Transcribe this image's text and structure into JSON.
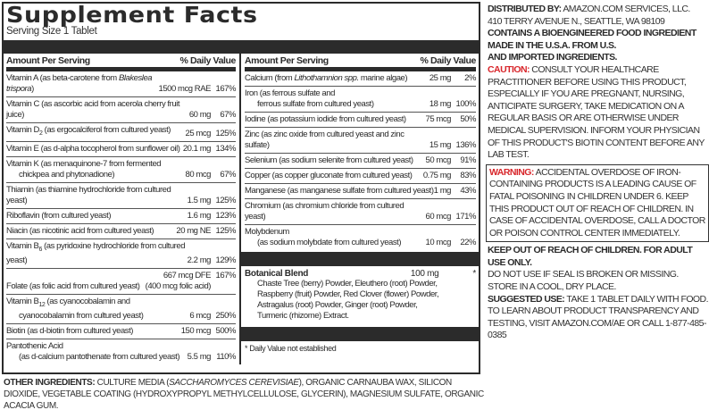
{
  "panel": {
    "title": "Supplement Facts",
    "serving_size": "Serving Size 1 Tablet",
    "header_amount": "Amount Per Serving",
    "header_dv": "% Daily Value"
  },
  "left_rows": [
    {
      "name": "Vitamin A (as beta-carotene from ",
      "italic": "Blakeslea trispora",
      "name_after": ")",
      "amount": "1500 mcg RAE",
      "dv": "167%"
    },
    {
      "name": "Vitamin C (as ascorbic acid from acerola cherry fruit juice)",
      "amount": "60 mg",
      "dv": "67%"
    },
    {
      "name": "Vitamin D",
      "sub": "2",
      "name_after": " (as ergocalciferol from cultured yeast)",
      "amount": "25 mcg",
      "dv": "125%"
    },
    {
      "name": "Vitamin E (as d-alpha tocopherol from sunflower oil)",
      "amount": "20.1 mg",
      "dv": "134%"
    },
    {
      "name": "Vitamin K (as menaquinone-7 from fermented",
      "line2": "chickpea and phytonadione)",
      "amount": "80 mcg",
      "dv": "67%"
    },
    {
      "name": "Thiamin (as thiamine hydrochloride from cultured yeast)",
      "amount": "1.5 mg",
      "dv": "125%"
    },
    {
      "name": "Riboflavin (from cultured yeast)",
      "amount": "1.6 mg",
      "dv": "123%"
    },
    {
      "name": "Niacin (as nicotinic acid from cultured yeast)",
      "amount": "20 mg NE",
      "dv": "125%"
    },
    {
      "name": "Vitamin B",
      "sub": "6",
      "name_after": " (as pyridoxine hydrochloride from cultured yeast)",
      "amount": "2.2 mg",
      "dv": "129%"
    },
    {
      "name": "Folate (as folic acid from cultured yeast)",
      "amount": "667 mcg DFE",
      "amount2": "(400 mcg folic acid)",
      "dv": "167%"
    },
    {
      "name": "Vitamin B",
      "sub": "12",
      "name_after": " (as cyanocobalamin and",
      "line2": "cyanocobalamin from cultured yeast)",
      "amount": "6 mcg",
      "dv": "250%"
    },
    {
      "name": "Biotin (as d-biotin from cultured yeast)",
      "amount": "150 mcg",
      "dv": "500%"
    },
    {
      "name": "Pantothenic Acid",
      "line2": "(as d-calcium pantothenate from cultured yeast)",
      "amount": "5.5 mg",
      "dv": "110%"
    }
  ],
  "right_rows": [
    {
      "name": "Calcium (from ",
      "italic": "Lithothamnion spp.",
      "name_after": " marine algae)",
      "amount": "25 mg",
      "dv": "2%"
    },
    {
      "name": "Iron (as ferrous sulfate and",
      "line2": "ferrous sulfate from cultured yeast)",
      "amount": "18 mg",
      "dv": "100%"
    },
    {
      "name": "Iodine (as potassium iodide from cultured yeast)",
      "amount": "75 mcg",
      "dv": "50%"
    },
    {
      "name": "Zinc (as zinc oxide from cultured yeast and zinc sulfate)",
      "amount": "15 mg",
      "dv": "136%"
    },
    {
      "name": "Selenium (as sodium selenite from cultured yeast)",
      "amount": "50 mcg",
      "dv": "91%"
    },
    {
      "name": "Copper (as copper gluconate from cultured yeast)",
      "amount": "0.75 mg",
      "dv": "83%"
    },
    {
      "name": "Manganese (as manganese sulfate from cultured yeast)",
      "amount": "1 mg",
      "dv": "43%"
    },
    {
      "name": "Chromium (as chromium chloride from cultured yeast)",
      "amount": "60 mcg",
      "dv": "171%"
    },
    {
      "name": "Molybdenum",
      "line2": "(as sodium molybdate from cultured yeast)",
      "amount": "10 mcg",
      "dv": "22%"
    }
  ],
  "blend": {
    "name": "Botanical Blend",
    "amount": "100 mg",
    "dv": "*",
    "ingredients": "Chaste Tree (berry) Powder, Eleuthero (root) Powder, Raspberry (fruit) Powder, Red Clover (flower) Powder, Astragalus (root) Powder, Ginger (root) Powder, Turmeric (rhizome) Extract."
  },
  "footnote": "* Daily Value not established",
  "other_ingredients": {
    "label": "OTHER INGREDIENTS:",
    "text_before": " CULTURE MEDIA (",
    "italic": "SACCHAROMYCES CEREVISIAE",
    "text_after": "), ORGANIC CARNAUBA WAX, SILICON DIOXIDE, VEGETABLE COATING (HYDROXYPROPYL METHYLCELLULOSE, GLYCERIN), MAGNESIUM SULFATE, ORGANIC ACACIA GUM."
  },
  "side": {
    "distributed_label": "DISTRIBUTED BY:",
    "distributed_text": " AMAZON.COM SERVICES, LLC.",
    "address": "410 TERRY AVENUE N., SEATTLE, WA 98109",
    "bioengineered": "CONTAINS A BIOENGINEERED FOOD INGREDIENT",
    "made_in_1": "MADE IN THE U.S.A. FROM U.S.",
    "made_in_2": "AND IMPORTED INGREDIENTS.",
    "caution_label": "CAUTION:",
    "caution_text": " CONSULT YOUR HEALTHCARE PRACTITIONER BEFORE USING THIS PRODUCT, ESPECIALLY IF YOU ARE PREGNANT, NURSING, ANTICIPATE SURGERY, TAKE MEDICATION ON A REGULAR BASIS OR ARE OTHERWISE UNDER MEDICAL SUPERVISION. INFORM YOUR PHYSICIAN OF THIS PRODUCT'S BIOTIN CONTENT BEFORE ANY LAB TEST.",
    "warning_label": "WARNING:",
    "warning_text": " ACCIDENTAL OVERDOSE OF IRON-CONTAINING PRODUCTS IS A LEADING CAUSE OF FATAL POISONING IN CHILDREN UNDER 6. KEEP THIS PRODUCT OUT OF REACH OF CHILDREN. IN CASE OF ACCIDENTAL OVERDOSE, CALL A DOCTOR OR POISON CONTROL CENTER IMMEDIATELY.",
    "keep_out": "KEEP OUT OF REACH OF CHILDREN. FOR ADULT USE ONLY.",
    "seal": "DO NOT USE IF SEAL IS BROKEN OR MISSING.",
    "store": "STORE IN A COOL, DRY PLACE.",
    "suggested_label": "SUGGESTED USE:",
    "suggested_text": " TAKE 1 TABLET DAILY WITH FOOD.",
    "transparency": "TO LEARN ABOUT PRODUCT TRANSPARENCY AND TESTING, VISIT AMAZON.COM/AE OR CALL 1-877-485-0385"
  },
  "colors": {
    "dark_bar": "#2b2b2b",
    "caution_red": "#d8262b"
  }
}
